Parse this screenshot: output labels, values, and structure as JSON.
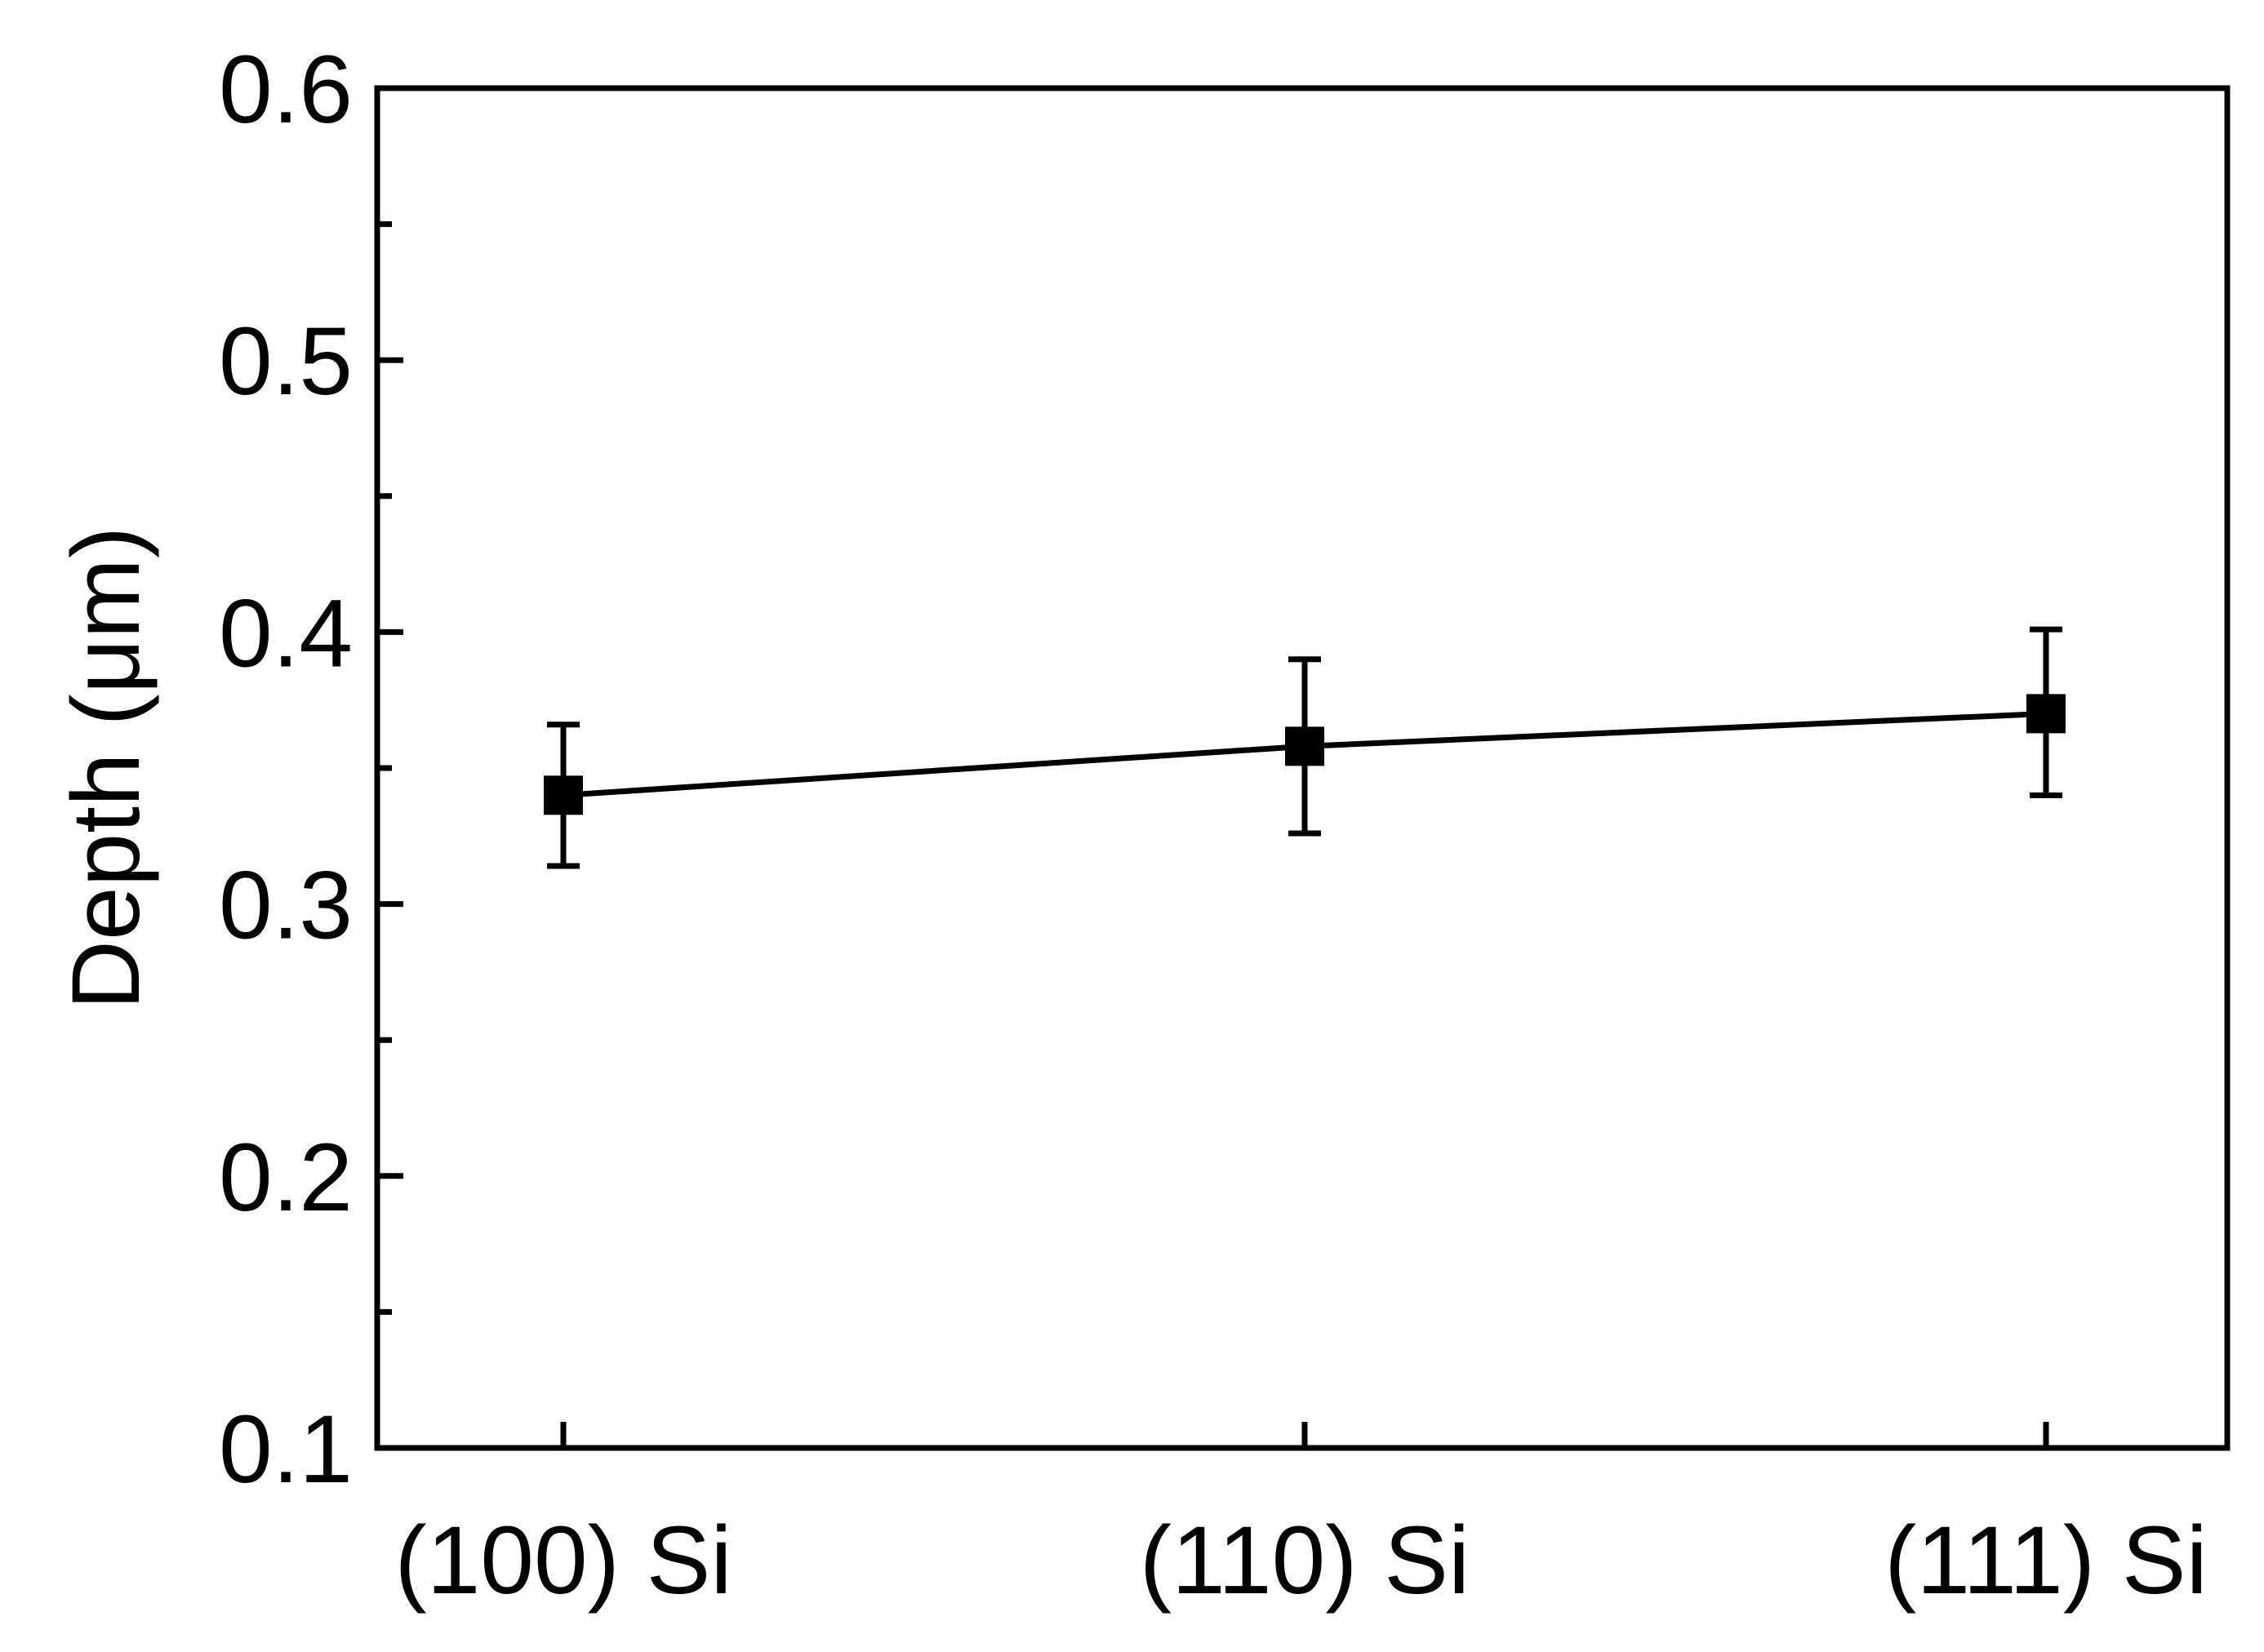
{
  "chart_data": {
    "type": "line",
    "title": "",
    "xlabel": "",
    "ylabel": "Depth (μm)",
    "ylim": [
      0.1,
      0.6
    ],
    "yticks": [
      0.1,
      0.2,
      0.3,
      0.4,
      0.5,
      0.6
    ],
    "yticks_display": [
      "0.1",
      "0.2",
      "0.3",
      "0.4",
      "0.5",
      "0.6"
    ],
    "categories": [
      "(100) Si",
      "(110) Si",
      "(111) Si"
    ],
    "series": [
      {
        "values": [
          0.34,
          0.358,
          0.37
        ],
        "error_low": [
          0.314,
          0.326,
          0.34
        ],
        "error_high": [
          0.366,
          0.39,
          0.401
        ],
        "marker": "square",
        "color": "#000000"
      }
    ],
    "grid": false,
    "legend": "none"
  }
}
